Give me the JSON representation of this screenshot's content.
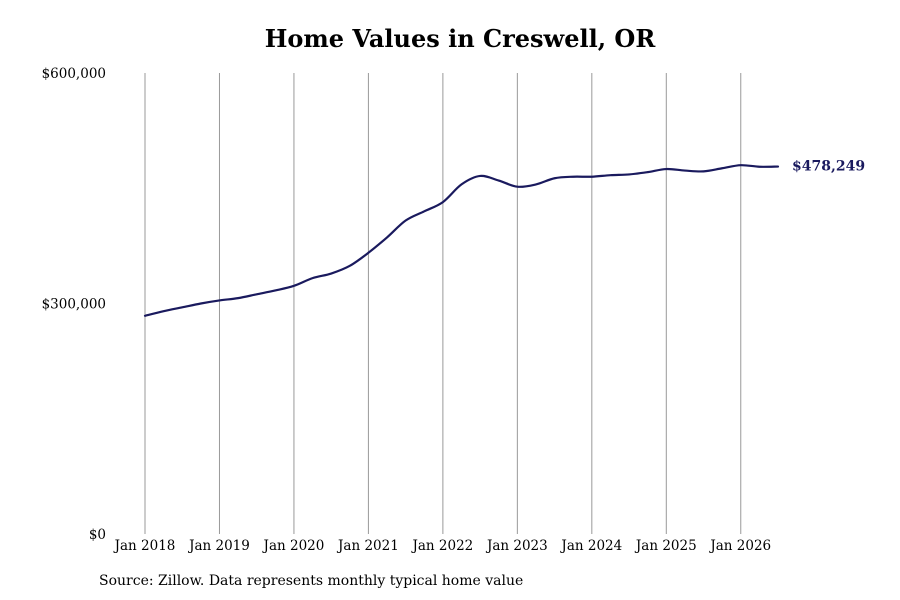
{
  "chart_data": {
    "type": "line",
    "title": "Home Values in Creswell, OR",
    "xlabel": "",
    "ylabel": "",
    "ylim": [
      0,
      600000
    ],
    "yticks": [
      {
        "value": 0,
        "label": "$0"
      },
      {
        "value": 300000,
        "label": "$300,000"
      },
      {
        "value": 600000,
        "label": "$600,000"
      }
    ],
    "xlim": [
      2018.0,
      2026.5
    ],
    "xticks": [
      {
        "value": 2018,
        "label": "Jan 2018"
      },
      {
        "value": 2019,
        "label": "Jan 2019"
      },
      {
        "value": 2020,
        "label": "Jan 2020"
      },
      {
        "value": 2021,
        "label": "Jan 2021"
      },
      {
        "value": 2022,
        "label": "Jan 2022"
      },
      {
        "value": 2023,
        "label": "Jan 2023"
      },
      {
        "value": 2024,
        "label": "Jan 2024"
      },
      {
        "value": 2025,
        "label": "Jan 2025"
      },
      {
        "value": 2026,
        "label": "Jan 2026"
      }
    ],
    "grid": "vertical",
    "legend": "none",
    "series": [
      {
        "color": "#1a1a5e",
        "x": [
          2018.0,
          2018.25,
          2018.5,
          2018.75,
          2019.0,
          2019.25,
          2019.5,
          2019.75,
          2020.0,
          2020.25,
          2020.5,
          2020.75,
          2021.0,
          2021.25,
          2021.5,
          2021.75,
          2022.0,
          2022.25,
          2022.5,
          2022.75,
          2023.0,
          2023.25,
          2023.5,
          2023.75,
          2024.0,
          2024.25,
          2024.5,
          2024.75,
          2025.0,
          2025.25,
          2025.5,
          2025.75,
          2026.0,
          2026.25,
          2026.5
        ],
        "values": [
          284000,
          290000,
          295000,
          300000,
          304000,
          307000,
          312000,
          317000,
          323000,
          333000,
          339000,
          349000,
          366000,
          386000,
          408000,
          420000,
          432000,
          455000,
          466000,
          460000,
          452000,
          455000,
          463000,
          465000,
          465000,
          467000,
          468000,
          471000,
          475000,
          473000,
          472000,
          476000,
          480000,
          478000,
          478249
        ],
        "end_label": "$478,249"
      }
    ]
  },
  "footer": {
    "source": "Source: Zillow. Data represents monthly typical home value"
  }
}
